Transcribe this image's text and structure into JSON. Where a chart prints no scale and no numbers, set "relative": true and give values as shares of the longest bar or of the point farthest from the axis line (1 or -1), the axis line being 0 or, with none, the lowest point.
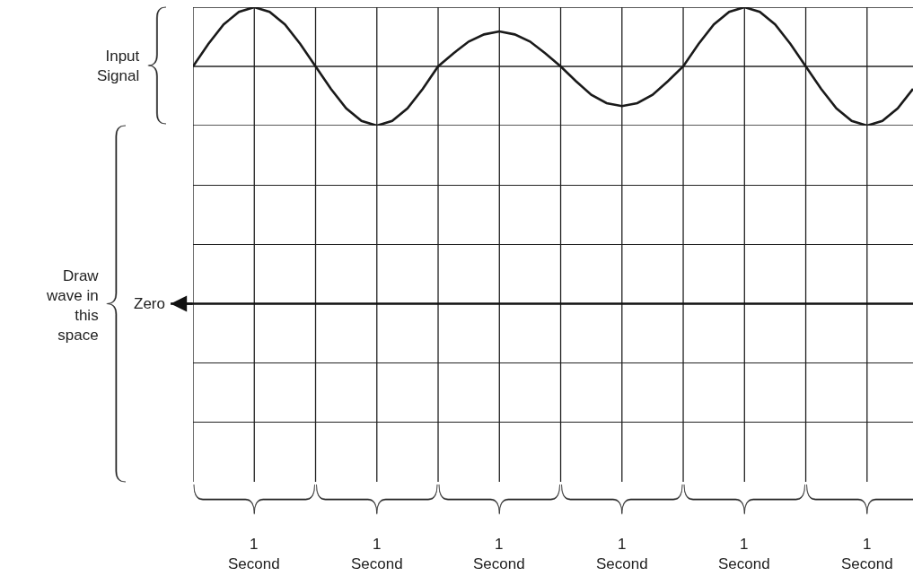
{
  "chart_data": {
    "type": "line",
    "relative": true,
    "ylabel": "Input Signal",
    "categories": [
      null,
      null,
      null,
      null,
      null,
      null,
      null,
      null,
      null,
      null,
      null,
      null,
      null,
      null,
      null,
      null,
      null,
      null,
      null,
      null,
      null,
      null,
      null,
      null,
      null,
      null,
      null,
      null,
      null,
      null,
      null,
      null,
      null,
      null,
      null,
      null,
      null,
      null,
      null,
      null,
      null,
      null,
      null,
      null,
      null,
      null,
      null,
      null
    ],
    "series": [
      {
        "color": "#1a1a1a",
        "values": [
          0,
          0.38,
          0.71,
          0.92,
          1,
          0.92,
          0.71,
          0.38,
          0,
          -0.38,
          -0.71,
          -0.92,
          -1,
          -0.92,
          -0.71,
          -0.38,
          0,
          0.22,
          0.42,
          0.54,
          0.59,
          0.54,
          0.42,
          0.22,
          0,
          -0.25,
          -0.48,
          -0.62,
          -0.67,
          -0.62,
          -0.48,
          -0.25,
          0,
          0.38,
          0.71,
          0.92,
          1,
          0.92,
          0.71,
          0.38,
          0,
          -0.38,
          -0.71,
          -0.92,
          -1,
          -0.92,
          -0.71,
          -0.38
        ]
      }
    ],
    "ref_lines": [
      {
        "axis": "y",
        "value": 0,
        "label": "Zero"
      }
    ],
    "annotations": [
      "Draw wave in this space",
      "1 Second",
      "1 Second",
      "1 Second",
      "1 Second",
      "1 Second",
      "1 Second"
    ],
    "grid": true,
    "line_style": "solid"
  }
}
